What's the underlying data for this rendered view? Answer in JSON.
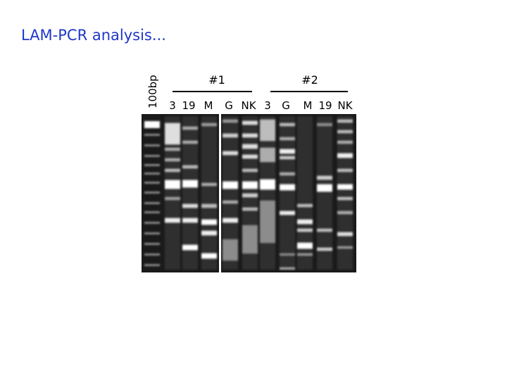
{
  "title": "LAM-PCR analysis...",
  "marker_label": "100bp",
  "groups": [
    {
      "label": "#1"
    },
    {
      "label": "#2"
    }
  ],
  "lanes": [
    "3",
    "19",
    "M",
    "G",
    "NK",
    "3",
    "G",
    "M",
    "19",
    "NK"
  ]
}
